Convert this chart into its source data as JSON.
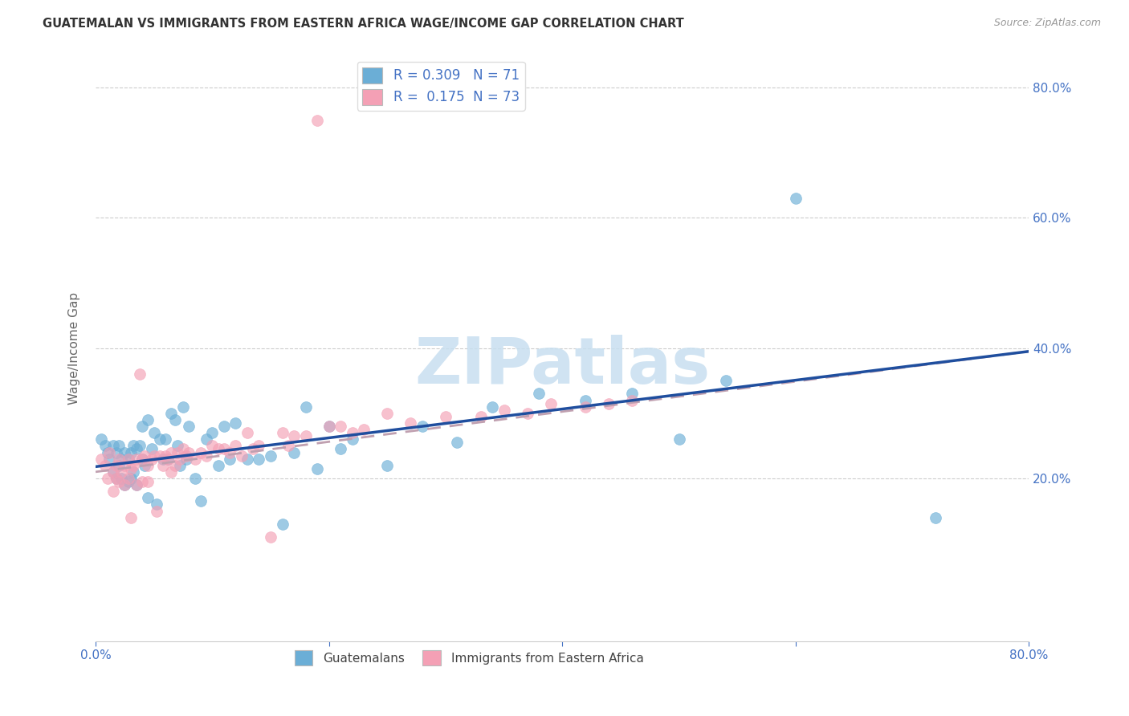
{
  "title": "GUATEMALAN VS IMMIGRANTS FROM EASTERN AFRICA WAGE/INCOME GAP CORRELATION CHART",
  "source": "Source: ZipAtlas.com",
  "ylabel": "Wage/Income Gap",
  "xlim": [
    0.0,
    0.8
  ],
  "ylim": [
    -0.05,
    0.85
  ],
  "xticks": [
    0.0,
    0.2,
    0.4,
    0.6,
    0.8
  ],
  "yticks_right": [
    0.2,
    0.4,
    0.6,
    0.8
  ],
  "xtick_labels": [
    "0.0%",
    "",
    "",
    "",
    "80.0%"
  ],
  "ytick_labels_right": [
    "20.0%",
    "40.0%",
    "60.0%",
    "80.0%"
  ],
  "blue_color": "#6baed6",
  "pink_color": "#f4a0b5",
  "blue_line_color": "#1f4e9e",
  "pink_line_color": "#c0a0b0",
  "axis_tick_color": "#4472C4",
  "grid_color": "#cccccc",
  "watermark_text": "ZIPatlas",
  "watermark_color": "#c8dff0",
  "legend_blue_label": "R = 0.309   N = 71",
  "legend_pink_label": "R =  0.175  N = 73",
  "legend_series_blue": "Guatemalans",
  "legend_series_pink": "Immigrants from Eastern Africa",
  "blue_x": [
    0.005,
    0.008,
    0.01,
    0.012,
    0.015,
    0.015,
    0.018,
    0.018,
    0.02,
    0.02,
    0.022,
    0.022,
    0.025,
    0.025,
    0.028,
    0.028,
    0.03,
    0.03,
    0.032,
    0.032,
    0.035,
    0.035,
    0.038,
    0.04,
    0.04,
    0.042,
    0.045,
    0.045,
    0.048,
    0.05,
    0.052,
    0.055,
    0.058,
    0.06,
    0.062,
    0.065,
    0.068,
    0.07,
    0.072,
    0.075,
    0.078,
    0.08,
    0.085,
    0.09,
    0.095,
    0.1,
    0.105,
    0.11,
    0.115,
    0.12,
    0.13,
    0.14,
    0.15,
    0.16,
    0.17,
    0.18,
    0.19,
    0.2,
    0.21,
    0.22,
    0.25,
    0.28,
    0.31,
    0.34,
    0.38,
    0.42,
    0.46,
    0.5,
    0.54,
    0.6,
    0.72
  ],
  "blue_y": [
    0.26,
    0.25,
    0.24,
    0.23,
    0.25,
    0.21,
    0.24,
    0.2,
    0.25,
    0.22,
    0.23,
    0.2,
    0.24,
    0.19,
    0.23,
    0.195,
    0.24,
    0.2,
    0.25,
    0.21,
    0.245,
    0.19,
    0.25,
    0.28,
    0.23,
    0.22,
    0.29,
    0.17,
    0.245,
    0.27,
    0.16,
    0.26,
    0.23,
    0.26,
    0.23,
    0.3,
    0.29,
    0.25,
    0.22,
    0.31,
    0.23,
    0.28,
    0.2,
    0.165,
    0.26,
    0.27,
    0.22,
    0.28,
    0.23,
    0.285,
    0.23,
    0.23,
    0.235,
    0.13,
    0.24,
    0.31,
    0.215,
    0.28,
    0.245,
    0.26,
    0.22,
    0.28,
    0.255,
    0.31,
    0.33,
    0.32,
    0.33,
    0.26,
    0.35,
    0.63,
    0.14
  ],
  "pink_x": [
    0.005,
    0.008,
    0.01,
    0.012,
    0.015,
    0.015,
    0.018,
    0.018,
    0.02,
    0.02,
    0.022,
    0.025,
    0.025,
    0.028,
    0.028,
    0.03,
    0.03,
    0.032,
    0.035,
    0.035,
    0.038,
    0.04,
    0.04,
    0.042,
    0.045,
    0.045,
    0.048,
    0.05,
    0.052,
    0.055,
    0.058,
    0.06,
    0.062,
    0.065,
    0.065,
    0.068,
    0.07,
    0.072,
    0.075,
    0.078,
    0.08,
    0.085,
    0.09,
    0.095,
    0.1,
    0.105,
    0.11,
    0.115,
    0.12,
    0.125,
    0.13,
    0.135,
    0.14,
    0.15,
    0.16,
    0.165,
    0.17,
    0.18,
    0.19,
    0.2,
    0.21,
    0.22,
    0.23,
    0.25,
    0.27,
    0.3,
    0.33,
    0.35,
    0.37,
    0.39,
    0.42,
    0.44,
    0.46
  ],
  "pink_y": [
    0.23,
    0.22,
    0.2,
    0.24,
    0.21,
    0.18,
    0.22,
    0.2,
    0.23,
    0.195,
    0.21,
    0.22,
    0.19,
    0.23,
    0.2,
    0.215,
    0.14,
    0.22,
    0.23,
    0.19,
    0.36,
    0.23,
    0.195,
    0.235,
    0.22,
    0.195,
    0.23,
    0.235,
    0.15,
    0.235,
    0.22,
    0.235,
    0.23,
    0.24,
    0.21,
    0.22,
    0.24,
    0.23,
    0.245,
    0.235,
    0.24,
    0.23,
    0.24,
    0.235,
    0.25,
    0.245,
    0.245,
    0.24,
    0.25,
    0.235,
    0.27,
    0.245,
    0.25,
    0.11,
    0.27,
    0.25,
    0.265,
    0.265,
    0.75,
    0.28,
    0.28,
    0.27,
    0.275,
    0.3,
    0.285,
    0.295,
    0.295,
    0.305,
    0.3,
    0.315,
    0.31,
    0.315,
    0.32
  ],
  "blue_line_x0": 0.0,
  "blue_line_y0": 0.218,
  "blue_line_x1": 0.8,
  "blue_line_y1": 0.395,
  "pink_line_x0": 0.0,
  "pink_line_y0": 0.21,
  "pink_line_x1": 0.8,
  "pink_line_y1": 0.395
}
